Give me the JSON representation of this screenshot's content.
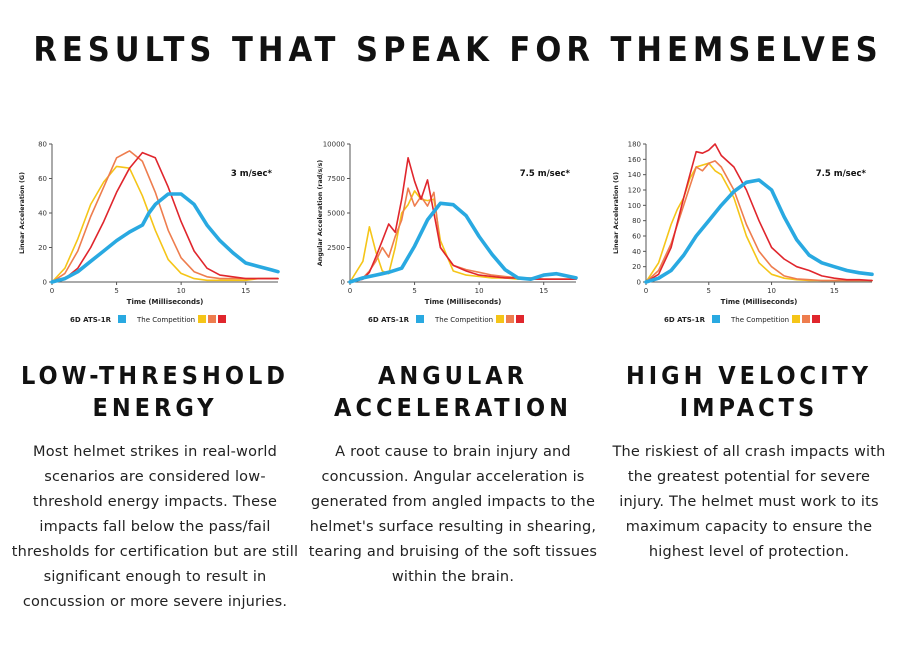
{
  "page": {
    "title": "RESULTS THAT SPEAK FOR THEMSELVES"
  },
  "colors": {
    "ats": "#29a9e1",
    "competition": [
      "#f5c518",
      "#ee7d4e",
      "#e0262d"
    ],
    "axis": "#555555"
  },
  "legend": {
    "ats_label": "6D ATS-1R",
    "competition_label": "The Competition"
  },
  "sections": [
    {
      "heading_line1": "LOW-THRESHOLD",
      "heading_line2": "ENERGY",
      "description": "Most helmet strikes in real-world scenarios are considered low-threshold energy impacts. These impacts fall below the pass/fail thresholds for certification but are still significant enough to result in concussion or more severe injuries."
    },
    {
      "heading_line1": "ANGULAR",
      "heading_line2": "ACCELERATION",
      "description": "A root cause to brain injury and concussion. Angular acceleration is generated from angled impacts to the helmet's surface resulting in shearing, tearing and bruising of the soft tissues within the brain."
    },
    {
      "heading_line1": "HIGH VELOCITY",
      "heading_line2": "IMPACTS",
      "description": "The riskiest of all crash impacts with the greatest potential for severe injury. The helmet must work to its maximum capacity to ensure the highest level of protection."
    }
  ],
  "chart_data": [
    {
      "type": "line",
      "xlabel": "Time (Milliseconds)",
      "ylabel": "Linear Acceleration (G)",
      "annotation": "3 m/sec*",
      "xlim": [
        0,
        17.5
      ],
      "ylim": [
        0,
        80
      ],
      "xticks": [
        0,
        5,
        10,
        15
      ],
      "yticks": [
        0,
        20,
        40,
        60,
        80
      ],
      "series": [
        {
          "name": "6D ATS-1R",
          "x": [
            0,
            1,
            2,
            3,
            4,
            5,
            6,
            7,
            7.5,
            8,
            9,
            10,
            11,
            12,
            13,
            14,
            15,
            16,
            17,
            17.5
          ],
          "y": [
            0,
            2,
            6,
            12,
            18,
            24,
            29,
            33,
            40,
            45,
            51,
            51,
            45,
            33,
            24,
            17,
            11,
            9,
            7,
            6
          ]
        },
        {
          "name": "The Competition",
          "x": [
            0,
            1,
            2,
            3,
            4,
            5,
            6,
            7,
            8,
            9,
            10,
            11,
            12,
            13,
            14,
            15,
            16,
            17,
            17.5
          ],
          "y": [
            0,
            8,
            25,
            45,
            58,
            67,
            66,
            50,
            30,
            13,
            5,
            2,
            1,
            1,
            1,
            1,
            2,
            2,
            2
          ]
        },
        {
          "name": "The Competition",
          "x": [
            0,
            1,
            2,
            3,
            4,
            5,
            6,
            7,
            8,
            9,
            10,
            11,
            12,
            13,
            14,
            15,
            16,
            17,
            17.5
          ],
          "y": [
            0,
            5,
            18,
            38,
            55,
            72,
            76,
            70,
            52,
            30,
            14,
            6,
            3,
            2,
            2,
            2,
            2,
            2,
            2
          ]
        },
        {
          "name": "The Competition",
          "x": [
            0,
            1,
            2,
            3,
            4,
            5,
            6,
            7,
            8,
            9,
            10,
            11,
            12,
            13,
            14,
            15,
            16,
            17,
            17.5
          ],
          "y": [
            0,
            2,
            8,
            20,
            35,
            52,
            66,
            75,
            72,
            55,
            35,
            18,
            8,
            4,
            3,
            2,
            2,
            2,
            2
          ]
        }
      ]
    },
    {
      "type": "line",
      "xlabel": "Time (Milliseconds)",
      "ylabel": "Angular Acceleration (rad/s/s)",
      "annotation": "7.5 m/sec*",
      "xlim": [
        0,
        17.5
      ],
      "ylim": [
        0,
        10000
      ],
      "xticks": [
        0,
        5,
        10,
        15
      ],
      "yticks": [
        0,
        2500,
        5000,
        7500,
        10000
      ],
      "series": [
        {
          "name": "6D ATS-1R",
          "x": [
            0,
            1,
            2,
            3,
            4,
            5,
            6,
            7,
            8,
            9,
            10,
            11,
            12,
            13,
            14,
            15,
            16,
            17,
            17.5
          ],
          "y": [
            0,
            300,
            500,
            700,
            1000,
            2600,
            4500,
            5700,
            5600,
            4800,
            3300,
            2000,
            900,
            300,
            200,
            500,
            600,
            400,
            300
          ]
        },
        {
          "name": "The Competition",
          "x": [
            0,
            1,
            1.5,
            2,
            2.5,
            3,
            3.5,
            4,
            4.5,
            5,
            5.5,
            6,
            6.5,
            7,
            8,
            9,
            10,
            11,
            12,
            13,
            14,
            15,
            16,
            17,
            17.5
          ],
          "y": [
            0,
            1500,
            4000,
            2200,
            800,
            600,
            2500,
            5000,
            5600,
            6600,
            6000,
            5900,
            6000,
            3000,
            800,
            500,
            400,
            300,
            300,
            200,
            200,
            200,
            200,
            200,
            200
          ]
        },
        {
          "name": "The Competition",
          "x": [
            0,
            1,
            1.5,
            2,
            2.5,
            3,
            3.5,
            4,
            4.5,
            5,
            5.5,
            6,
            6.5,
            7,
            8,
            9,
            10,
            11,
            12,
            13,
            14,
            15,
            16,
            17,
            17.5
          ],
          "y": [
            0,
            300,
            800,
            1500,
            2500,
            1800,
            3300,
            4500,
            6800,
            5500,
            6200,
            5500,
            6500,
            2500,
            1200,
            900,
            700,
            500,
            400,
            300,
            300,
            200,
            200,
            200,
            200
          ]
        },
        {
          "name": "The Competition",
          "x": [
            0,
            1,
            1.5,
            2,
            2.5,
            3,
            3.5,
            4,
            4.5,
            5,
            5.5,
            6,
            6.5,
            7,
            8,
            9,
            10,
            11,
            12,
            13,
            14,
            15,
            16,
            17,
            17.5
          ],
          "y": [
            0,
            200,
            700,
            1800,
            3000,
            4200,
            3600,
            6000,
            9000,
            7300,
            6000,
            7400,
            5000,
            2500,
            1200,
            800,
            500,
            400,
            300,
            300,
            200,
            200,
            200,
            200,
            200
          ]
        }
      ]
    },
    {
      "type": "line",
      "xlabel": "Time (Milliseconds)",
      "ylabel": "Linear Acceleration (G)",
      "annotation": "7.5 m/sec*",
      "xlim": [
        0,
        18
      ],
      "ylim": [
        0,
        180
      ],
      "xticks": [
        0,
        5,
        10,
        15
      ],
      "yticks": [
        0,
        20,
        40,
        60,
        80,
        100,
        120,
        140,
        160,
        180
      ],
      "series": [
        {
          "name": "6D ATS-1R",
          "x": [
            0,
            1,
            2,
            3,
            4,
            5,
            6,
            7,
            8,
            9,
            10,
            11,
            12,
            13,
            14,
            15,
            16,
            17,
            18
          ],
          "y": [
            0,
            5,
            15,
            35,
            60,
            80,
            100,
            118,
            130,
            133,
            120,
            85,
            55,
            35,
            25,
            20,
            15,
            12,
            10
          ]
        },
        {
          "name": "The Competition",
          "x": [
            0,
            1,
            2,
            2.5,
            3,
            3.5,
            4,
            5,
            5.5,
            6,
            7,
            8,
            9,
            10,
            11,
            12,
            13,
            14,
            15,
            16,
            17,
            18
          ],
          "y": [
            0,
            25,
            75,
            95,
            110,
            135,
            150,
            155,
            145,
            140,
            110,
            60,
            25,
            10,
            5,
            3,
            2,
            2,
            2,
            2,
            2,
            2
          ]
        },
        {
          "name": "The Competition",
          "x": [
            0,
            1,
            2,
            3,
            3.5,
            4,
            4.5,
            5,
            5.5,
            6,
            7,
            8,
            9,
            10,
            11,
            12,
            13,
            14,
            15,
            16,
            17,
            18
          ],
          "y": [
            0,
            15,
            50,
            100,
            125,
            150,
            145,
            155,
            158,
            150,
            120,
            75,
            40,
            20,
            8,
            4,
            3,
            2,
            2,
            2,
            2,
            2
          ]
        },
        {
          "name": "The Competition",
          "x": [
            0,
            1,
            2,
            3,
            3.5,
            4,
            4.5,
            5,
            5.5,
            6,
            7,
            8,
            9,
            10,
            11,
            12,
            13,
            14,
            15,
            16,
            17,
            18
          ],
          "y": [
            0,
            10,
            45,
            110,
            140,
            170,
            168,
            172,
            180,
            165,
            150,
            120,
            80,
            45,
            30,
            20,
            15,
            8,
            5,
            3,
            3,
            2
          ]
        }
      ]
    }
  ]
}
